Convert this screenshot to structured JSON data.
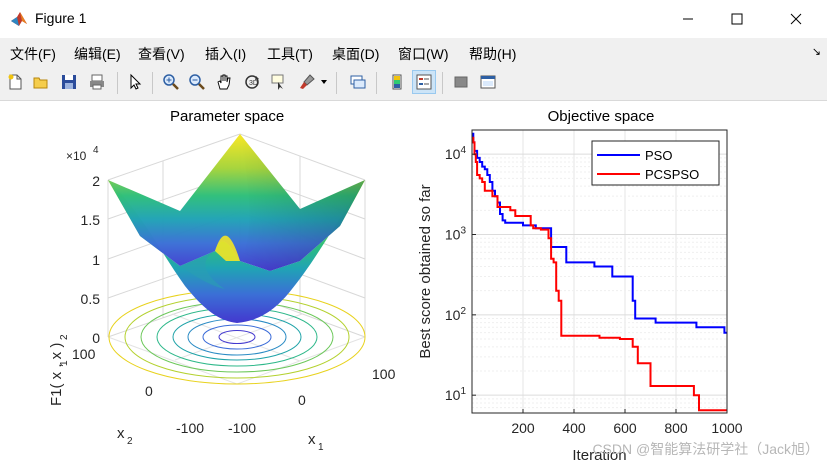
{
  "window": {
    "title": "Figure 1"
  },
  "menu": {
    "items": [
      "文件(F)",
      "编辑(E)",
      "查看(V)",
      "插入(I)",
      "工具(T)",
      "桌面(D)",
      "窗口(W)",
      "帮助(H)"
    ]
  },
  "toolbar": {
    "icons": [
      "new-figure-icon",
      "open-file-icon",
      "save-icon",
      "print-icon",
      "pointer-icon",
      "zoom-in-icon",
      "zoom-out-icon",
      "pan-hand-icon",
      "rotate-3d-icon",
      "data-cursor-icon",
      "brush-icon",
      "brush-dropdown-icon",
      "link-plot-icon",
      "colorbar-icon",
      "legend-icon",
      "hide-plot-tools-icon",
      "show-plot-tools-icon"
    ]
  },
  "left_plot": {
    "title": "Parameter space",
    "z_label": "F1( x , x )",
    "z_label_sub1": "1",
    "z_label_sub2": "2",
    "z_exponent": "×10",
    "z_exponent_power": "4",
    "z_ticks": [
      "2",
      "1.5",
      "1",
      "0.5",
      "0"
    ],
    "x1_label": "x",
    "x1_sub": "1",
    "x2_label": "x",
    "x2_sub": "2",
    "x1_ticks": [
      "-100",
      "0",
      "100"
    ],
    "x2_ticks": [
      "100",
      "0",
      "-100"
    ]
  },
  "chart_data": {
    "type": "line",
    "title": "Objective space",
    "xlabel": "Iteration",
    "ylabel": "Best score obtained so far",
    "xlim": [
      0,
      1000
    ],
    "ylim": [
      6,
      20000
    ],
    "yscale": "log",
    "xticks": [
      "200",
      "400",
      "600",
      "800",
      "1000"
    ],
    "yticks": [
      {
        "base": "10",
        "exp": "1",
        "value": 10
      },
      {
        "base": "10",
        "exp": "2",
        "value": 100
      },
      {
        "base": "10",
        "exp": "3",
        "value": 1000
      },
      {
        "base": "10",
        "exp": "4",
        "value": 10000
      }
    ],
    "grid": true,
    "legend_position": "top-right",
    "series": [
      {
        "name": "PSO",
        "color": "#0000ff",
        "x": [
          0,
          5,
          5,
          10,
          10,
          20,
          20,
          30,
          30,
          40,
          40,
          50,
          50,
          60,
          60,
          70,
          70,
          80,
          80,
          90,
          90,
          100,
          100,
          110,
          110,
          120,
          120,
          130,
          130,
          140,
          140,
          200,
          200,
          250,
          250,
          310,
          310,
          370,
          370,
          380,
          380,
          480,
          480,
          550,
          550,
          610,
          610,
          630,
          630,
          640,
          640,
          720,
          720,
          880,
          880,
          990,
          990,
          1000
        ],
        "y": [
          18000,
          18000,
          14000,
          14000,
          11000,
          11000,
          9000,
          9000,
          8000,
          8000,
          7000,
          7000,
          6500,
          6500,
          5500,
          5500,
          4500,
          4500,
          3500,
          3500,
          3000,
          3000,
          2500,
          2500,
          1800,
          1800,
          1500,
          1500,
          1400,
          1400,
          1400,
          1400,
          1300,
          1300,
          1200,
          1200,
          700,
          700,
          450,
          450,
          450,
          450,
          400,
          400,
          300,
          300,
          300,
          300,
          150,
          150,
          90,
          90,
          80,
          80,
          70,
          70,
          60,
          60
        ]
      },
      {
        "name": "PCSPSO",
        "color": "#ff0000",
        "x": [
          0,
          5,
          5,
          10,
          10,
          15,
          15,
          20,
          20,
          30,
          30,
          40,
          40,
          50,
          50,
          80,
          80,
          100,
          100,
          150,
          150,
          160,
          160,
          170,
          170,
          230,
          230,
          240,
          240,
          270,
          270,
          300,
          300,
          310,
          310,
          320,
          320,
          330,
          330,
          340,
          340,
          350,
          350,
          500,
          500,
          580,
          580,
          630,
          630,
          650,
          650,
          700,
          700,
          840,
          840,
          870,
          870,
          890,
          890,
          1000
        ],
        "y": [
          16000,
          16000,
          14000,
          14000,
          10000,
          10000,
          8000,
          8000,
          5500,
          5500,
          5000,
          5000,
          4500,
          4500,
          3500,
          3500,
          3000,
          3000,
          2200,
          2200,
          2000,
          2000,
          2000,
          2000,
          1700,
          1700,
          1300,
          1300,
          1200,
          1200,
          1150,
          1150,
          900,
          900,
          500,
          500,
          450,
          450,
          200,
          200,
          150,
          150,
          55,
          55,
          52,
          52,
          50,
          50,
          40,
          40,
          25,
          25,
          13,
          13,
          13,
          13,
          10,
          10,
          6.5,
          6.5
        ]
      }
    ]
  },
  "watermark": "CSDN @智能算法研学社（Jack旭）"
}
